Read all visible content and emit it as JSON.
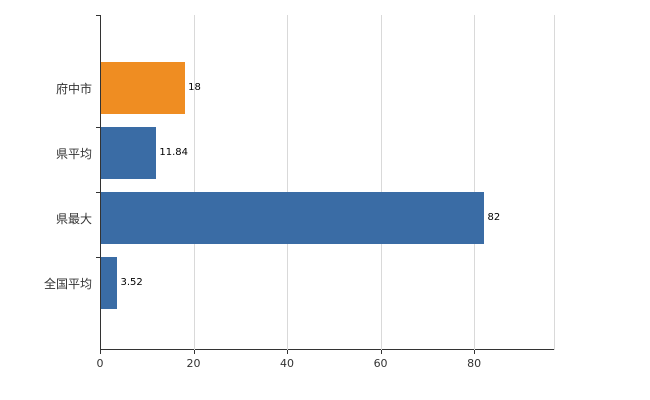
{
  "chart_data": {
    "type": "bar",
    "orientation": "horizontal",
    "title": "",
    "xlabel": "",
    "ylabel": "",
    "categories": [
      "府中市",
      "県平均",
      "県最大",
      "全国平均"
    ],
    "values": [
      18,
      11.84,
      82,
      3.52
    ],
    "value_labels": [
      "18",
      "11.84",
      "82",
      "3.52"
    ],
    "bar_colors": [
      "#ef8d22",
      "#3a6ca5",
      "#3a6ca5",
      "#3a6ca5"
    ],
    "xticks": [
      0,
      20,
      40,
      60,
      80
    ],
    "xtick_labels": [
      "0",
      "20",
      "40",
      "60",
      "80"
    ],
    "xlim": [
      0,
      97.3
    ],
    "grid": "vertical",
    "legend": "none",
    "colors": {
      "highlight_bar": "#ef8d22",
      "default_bar": "#3a6ca5",
      "gridline": "#d9d9d9",
      "axis": "#333333",
      "background": "#ffffff"
    }
  }
}
